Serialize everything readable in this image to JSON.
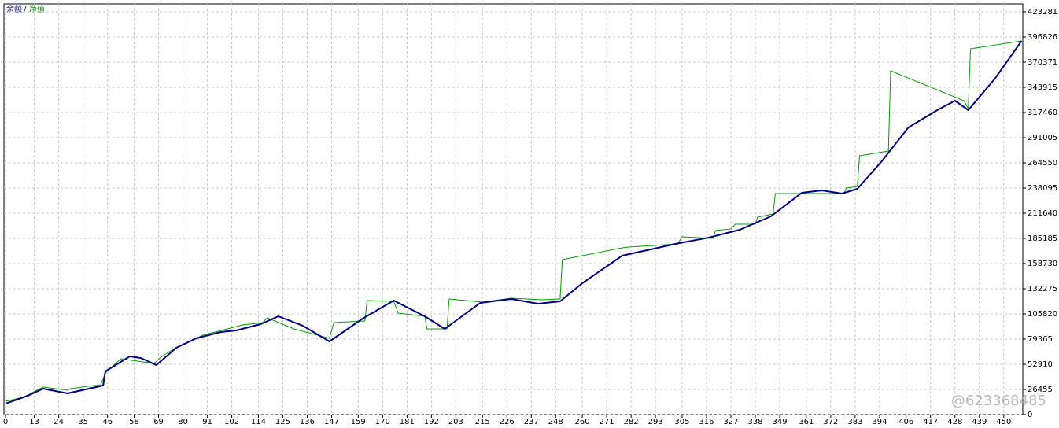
{
  "chart_data": {
    "type": "line",
    "legend_separator": "/",
    "watermark": "@623368485",
    "xlim": [
      0,
      460
    ],
    "xticks": [
      0,
      13,
      24,
      35,
      46,
      58,
      69,
      80,
      91,
      102,
      114,
      125,
      136,
      147,
      159,
      170,
      181,
      192,
      203,
      215,
      226,
      237,
      248,
      260,
      271,
      282,
      293,
      305,
      316,
      327,
      338,
      349,
      361,
      372,
      383,
      394,
      406,
      417,
      428,
      439,
      450
    ],
    "ylim": [
      0,
      431550
    ],
    "yticks": [
      0,
      26455,
      52910,
      79365,
      105820,
      132275,
      158730,
      185185,
      211640,
      238095,
      264550,
      291005,
      317460,
      343915,
      370371,
      396826,
      423281
    ],
    "grid": true,
    "series": [
      {
        "name": "净值",
        "color": "#00a000",
        "width": 1,
        "x": [
          0,
          8,
          17,
          28,
          29,
          43,
          45,
          52,
          67,
          70,
          76,
          89,
          100,
          107,
          116,
          118,
          130,
          146,
          148,
          162,
          163,
          175,
          177,
          189,
          190,
          199,
          200,
          215,
          228,
          242,
          250,
          251,
          278,
          281,
          303,
          305,
          319,
          320,
          327,
          329,
          338,
          339,
          346,
          347,
          359,
          378,
          379,
          384,
          385,
          398,
          399,
          432,
          434,
          435,
          458
        ],
        "values": [
          14050,
          18190,
          28930,
          25630,
          27280,
          31410,
          43820,
          58700,
          53740,
          60350,
          69440,
          83500,
          90110,
          94240,
          96720,
          101680,
          90110,
          80190,
          96720,
          98380,
          119870,
          119040,
          106640,
          103340,
          90110,
          90110,
          121520,
          118220,
          122350,
          120700,
          121520,
          162860,
          175260,
          176090,
          179390,
          186830,
          185180,
          193450,
          195100,
          200060,
          200060,
          207500,
          210810,
          232300,
          232300,
          232300,
          238090,
          239740,
          271980,
          276940,
          361260,
          329850,
          321590,
          384420,
          392680
        ]
      },
      {
        "name": "余额",
        "color": "#00008b",
        "width": 2,
        "x": [
          0,
          10,
          17,
          28,
          44,
          45,
          56,
          61,
          68,
          77,
          86,
          97,
          104,
          115,
          123,
          134,
          146,
          161,
          175,
          189,
          198,
          214,
          228,
          240,
          250,
          260,
          278,
          302,
          317,
          331,
          345,
          359,
          368,
          377,
          384,
          395,
          407,
          420,
          428,
          434,
          446,
          458
        ],
        "values": [
          11574,
          19840,
          27281,
          22320,
          30590,
          45470,
          61180,
          59520,
          52080,
          70270,
          80190,
          86800,
          88460,
          95070,
          103340,
          93420,
          76880,
          100860,
          119870,
          103340,
          90110,
          117390,
          121520,
          116560,
          119040,
          138060,
          166990,
          179390,
          186010,
          194270,
          208330,
          233130,
          235610,
          232300,
          237260,
          266200,
          301740,
          319930,
          329850,
          319930,
          353000,
          392680
        ]
      }
    ]
  }
}
